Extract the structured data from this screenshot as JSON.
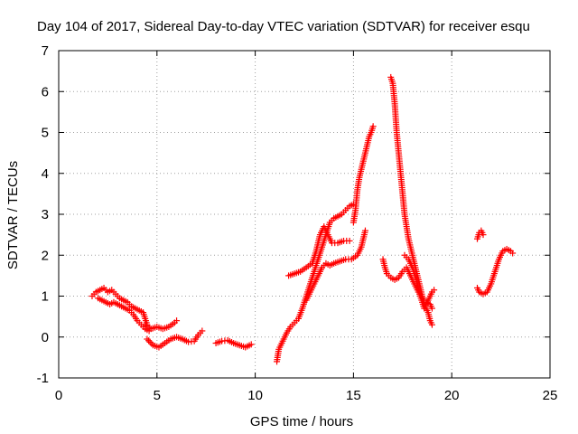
{
  "chart_data": {
    "type": "scatter",
    "title": "Day 104 of 2017, Sidereal Day-to-day VTEC variation (SDTVAR) for receiver esqu",
    "xlabel": "GPS time / hours",
    "ylabel": "SDTVAR / TECUs",
    "xlim": [
      0,
      25
    ],
    "ylim": [
      -1,
      7
    ],
    "xticks": [
      "0",
      "5",
      "10",
      "15",
      "20",
      "25"
    ],
    "yticks": [
      "-1",
      "0",
      "1",
      "2",
      "3",
      "4",
      "5",
      "6",
      "7"
    ],
    "grid": true,
    "marker": "+",
    "color": "#ff0000",
    "series": [
      {
        "segments": [
          [
            [
              1.7,
              1.0
            ],
            [
              1.9,
              1.1
            ],
            [
              2.1,
              1.15
            ],
            [
              2.3,
              1.2
            ],
            [
              2.5,
              1.1
            ],
            [
              2.7,
              1.15
            ],
            [
              2.9,
              1.05
            ],
            [
              3.1,
              0.95
            ],
            [
              3.3,
              0.9
            ],
            [
              3.5,
              0.85
            ],
            [
              3.7,
              0.75
            ],
            [
              3.9,
              0.7
            ],
            [
              4.1,
              0.65
            ],
            [
              4.3,
              0.6
            ],
            [
              4.4,
              0.45
            ],
            [
              4.5,
              0.3
            ]
          ],
          [
            [
              2.0,
              0.95
            ],
            [
              2.2,
              0.9
            ],
            [
              2.4,
              0.85
            ],
            [
              2.6,
              0.8
            ],
            [
              2.8,
              0.85
            ],
            [
              3.0,
              0.8
            ],
            [
              3.2,
              0.75
            ],
            [
              3.4,
              0.7
            ],
            [
              3.6,
              0.65
            ],
            [
              3.8,
              0.55
            ],
            [
              4.0,
              0.4
            ],
            [
              4.2,
              0.3
            ],
            [
              4.4,
              0.2
            ],
            [
              4.6,
              0.15
            ]
          ],
          [
            [
              4.4,
              0.3
            ],
            [
              4.7,
              0.2
            ],
            [
              5.0,
              0.25
            ],
            [
              5.3,
              0.2
            ],
            [
              5.6,
              0.25
            ],
            [
              5.9,
              0.35
            ],
            [
              6.0,
              0.4
            ]
          ],
          [
            [
              4.5,
              -0.05
            ],
            [
              4.8,
              -0.2
            ],
            [
              5.1,
              -0.25
            ],
            [
              5.4,
              -0.15
            ],
            [
              5.7,
              -0.05
            ],
            [
              6.0,
              0.0
            ],
            [
              6.3,
              -0.05
            ],
            [
              6.6,
              -0.12
            ],
            [
              6.9,
              -0.1
            ],
            [
              7.1,
              0.05
            ],
            [
              7.3,
              0.15
            ]
          ],
          [
            [
              8.0,
              -0.15
            ],
            [
              8.3,
              -0.1
            ],
            [
              8.6,
              -0.08
            ],
            [
              8.9,
              -0.15
            ],
            [
              9.2,
              -0.2
            ],
            [
              9.5,
              -0.25
            ],
            [
              9.8,
              -0.18
            ]
          ],
          [
            [
              11.1,
              -0.6
            ],
            [
              11.2,
              -0.3
            ],
            [
              11.4,
              -0.1
            ],
            [
              11.6,
              0.1
            ],
            [
              11.8,
              0.25
            ],
            [
              12.0,
              0.35
            ],
            [
              12.2,
              0.45
            ],
            [
              12.4,
              0.7
            ],
            [
              12.6,
              1.0
            ],
            [
              12.8,
              1.3
            ],
            [
              13.0,
              1.6
            ],
            [
              13.2,
              1.9
            ],
            [
              13.4,
              2.2
            ],
            [
              13.6,
              2.5
            ],
            [
              13.8,
              2.8
            ],
            [
              14.0,
              2.9
            ],
            [
              14.2,
              2.95
            ],
            [
              14.4,
              3.0
            ],
            [
              14.6,
              3.1
            ],
            [
              14.8,
              3.2
            ],
            [
              15.0,
              3.25
            ]
          ],
          [
            [
              11.7,
              1.5
            ],
            [
              12.0,
              1.55
            ],
            [
              12.3,
              1.6
            ],
            [
              12.6,
              1.7
            ],
            [
              12.9,
              1.8
            ],
            [
              13.1,
              2.1
            ],
            [
              13.3,
              2.5
            ],
            [
              13.5,
              2.7
            ],
            [
              13.7,
              2.5
            ],
            [
              13.9,
              2.3
            ],
            [
              14.2,
              2.3
            ],
            [
              14.5,
              2.35
            ],
            [
              14.8,
              2.35
            ]
          ],
          [
            [
              12.6,
              0.9
            ],
            [
              12.8,
              1.1
            ],
            [
              13.0,
              1.3
            ],
            [
              13.2,
              1.5
            ],
            [
              13.4,
              1.7
            ],
            [
              13.6,
              1.8
            ],
            [
              13.8,
              1.75
            ],
            [
              14.0,
              1.8
            ],
            [
              14.3,
              1.85
            ],
            [
              14.6,
              1.9
            ],
            [
              14.9,
              1.9
            ],
            [
              15.2,
              2.0
            ],
            [
              15.4,
              2.2
            ],
            [
              15.6,
              2.6
            ]
          ],
          [
            [
              15.0,
              2.8
            ],
            [
              15.1,
              3.1
            ],
            [
              15.2,
              3.6
            ],
            [
              15.3,
              3.9
            ],
            [
              15.4,
              4.1
            ],
            [
              15.5,
              4.3
            ],
            [
              15.6,
              4.5
            ],
            [
              15.7,
              4.7
            ],
            [
              15.8,
              4.9
            ],
            [
              15.9,
              5.0
            ],
            [
              16.0,
              5.15
            ]
          ],
          [
            [
              16.9,
              6.35
            ],
            [
              17.0,
              6.2
            ],
            [
              17.1,
              5.7
            ],
            [
              17.2,
              5.0
            ],
            [
              17.3,
              4.5
            ],
            [
              17.4,
              4.0
            ],
            [
              17.5,
              3.5
            ],
            [
              17.6,
              3.0
            ],
            [
              17.7,
              2.7
            ],
            [
              17.8,
              2.4
            ],
            [
              17.9,
              2.2
            ],
            [
              18.0,
              2.0
            ],
            [
              18.1,
              1.8
            ],
            [
              18.2,
              1.6
            ],
            [
              18.3,
              1.4
            ],
            [
              18.4,
              1.2
            ],
            [
              18.5,
              1.0
            ],
            [
              18.6,
              0.8
            ],
            [
              18.8,
              0.6
            ],
            [
              18.9,
              0.4
            ],
            [
              19.0,
              0.3
            ]
          ],
          [
            [
              16.5,
              1.9
            ],
            [
              16.6,
              1.7
            ],
            [
              16.7,
              1.55
            ],
            [
              16.9,
              1.45
            ],
            [
              17.1,
              1.4
            ],
            [
              17.3,
              1.45
            ],
            [
              17.5,
              1.6
            ],
            [
              17.7,
              1.7
            ],
            [
              17.9,
              1.5
            ],
            [
              18.1,
              1.3
            ],
            [
              18.3,
              1.1
            ],
            [
              18.5,
              0.95
            ],
            [
              18.7,
              0.85
            ],
            [
              18.9,
              0.8
            ],
            [
              19.0,
              0.7
            ]
          ],
          [
            [
              17.6,
              2.0
            ],
            [
              17.8,
              1.9
            ],
            [
              18.0,
              1.7
            ],
            [
              18.2,
              1.4
            ],
            [
              18.4,
              1.0
            ],
            [
              18.6,
              0.7
            ],
            [
              18.8,
              0.9
            ],
            [
              19.0,
              1.1
            ],
            [
              19.1,
              1.15
            ]
          ],
          [
            [
              21.3,
              2.4
            ],
            [
              21.4,
              2.55
            ],
            [
              21.5,
              2.6
            ],
            [
              21.6,
              2.5
            ]
          ],
          [
            [
              21.3,
              1.2
            ],
            [
              21.4,
              1.1
            ],
            [
              21.6,
              1.05
            ],
            [
              21.8,
              1.1
            ],
            [
              22.0,
              1.3
            ],
            [
              22.2,
              1.6
            ],
            [
              22.4,
              1.9
            ],
            [
              22.6,
              2.1
            ],
            [
              22.8,
              2.15
            ],
            [
              23.0,
              2.1
            ],
            [
              23.1,
              2.05
            ]
          ]
        ]
      }
    ]
  }
}
